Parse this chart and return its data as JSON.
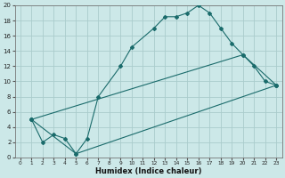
{
  "xlabel": "Humidex (Indice chaleur)",
  "bg_color": "#cce8e8",
  "grid_color": "#aacccc",
  "line_color": "#1a6b6b",
  "xlim": [
    -0.5,
    23.5
  ],
  "ylim": [
    0,
    20
  ],
  "xticks": [
    0,
    1,
    2,
    3,
    4,
    5,
    6,
    7,
    8,
    9,
    10,
    11,
    12,
    13,
    14,
    15,
    16,
    17,
    18,
    19,
    20,
    21,
    22,
    23
  ],
  "yticks": [
    0,
    2,
    4,
    6,
    8,
    10,
    12,
    14,
    16,
    18,
    20
  ],
  "line1_x": [
    1,
    2,
    3,
    4,
    5,
    6,
    7,
    9,
    10,
    12,
    13,
    14,
    15,
    16,
    17,
    18,
    19,
    20,
    21,
    22,
    23
  ],
  "line1_y": [
    5,
    2,
    3,
    2.5,
    0.5,
    2.5,
    8,
    12,
    14.5,
    17,
    18.5,
    18.5,
    19,
    20,
    19,
    17,
    15,
    13.5,
    12,
    10,
    9.5
  ],
  "line2_x": [
    1,
    5,
    23
  ],
  "line2_y": [
    5,
    0.5,
    9.5
  ],
  "line3_x": [
    1,
    20,
    23
  ],
  "line3_y": [
    5,
    13.5,
    9.5
  ]
}
